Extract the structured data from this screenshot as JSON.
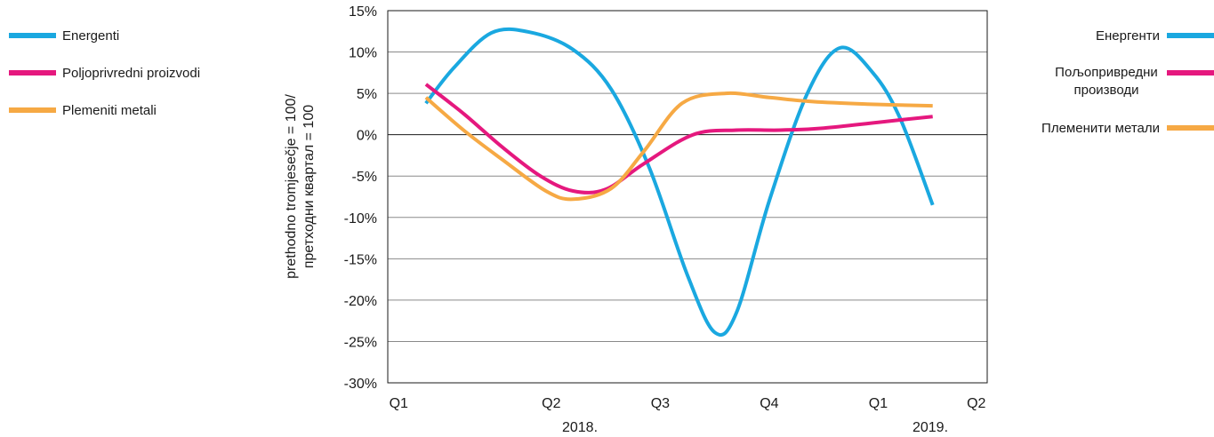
{
  "chart_data": {
    "type": "line",
    "ylabel": "prethodno tromjesečje = 100/",
    "ylabel_cyrillic": "претходни квартал  = 100",
    "ylim": [
      -30,
      15
    ],
    "y_ticks": [
      "15%",
      "10%",
      "5%",
      "0%",
      "-5%",
      "-10%",
      "-15%",
      "-20%",
      "-25%",
      "-30%"
    ],
    "y_tick_values": [
      15,
      10,
      5,
      0,
      -5,
      -10,
      -15,
      -20,
      -25,
      -30
    ],
    "x_ticks": [
      "Q1",
      "Q2",
      "Q3",
      "Q4",
      "Q1",
      "Q2"
    ],
    "year_labels": [
      "2018.",
      "2019."
    ],
    "x": [
      0.5,
      1.5,
      2.5,
      3.5,
      4.5,
      5.5
    ],
    "series": [
      {
        "name": "Energenti",
        "name_cyrillic": "Енергенти",
        "color": "#1aa8e0",
        "points": [
          [
            0.35,
            3.8
          ],
          [
            0.6,
            8
          ],
          [
            0.95,
            12.3
          ],
          [
            1.3,
            12.4
          ],
          [
            1.7,
            10.3
          ],
          [
            2.05,
            5.5
          ],
          [
            2.4,
            -4
          ],
          [
            2.75,
            -17
          ],
          [
            3.0,
            -23.9
          ],
          [
            3.2,
            -21.5
          ],
          [
            3.5,
            -8
          ],
          [
            3.85,
            5
          ],
          [
            4.15,
            10.5
          ],
          [
            4.45,
            7.5
          ],
          [
            4.7,
            2
          ],
          [
            5.0,
            -8.5
          ]
        ]
      },
      {
        "name": "Poljoprivredni proizvodi",
        "name_cyrillic": "Пољопривредни производи",
        "color": "#e5187e",
        "points": [
          [
            0.35,
            6.1
          ],
          [
            0.7,
            2.5
          ],
          [
            1.05,
            -1.5
          ],
          [
            1.4,
            -5
          ],
          [
            1.7,
            -6.8
          ],
          [
            2.0,
            -6.6
          ],
          [
            2.35,
            -3.5
          ],
          [
            2.8,
            0
          ],
          [
            3.2,
            0.55
          ],
          [
            3.6,
            0.55
          ],
          [
            4.0,
            0.8
          ],
          [
            4.5,
            1.5
          ],
          [
            5.0,
            2.2
          ]
        ]
      },
      {
        "name": "Plemeniti metali",
        "name_cyrillic": "Племенити метали",
        "color": "#f6a944",
        "points": [
          [
            0.35,
            4.5
          ],
          [
            0.7,
            0.5
          ],
          [
            1.05,
            -3
          ],
          [
            1.45,
            -6.8
          ],
          [
            1.7,
            -7.8
          ],
          [
            2.05,
            -6.5
          ],
          [
            2.35,
            -2
          ],
          [
            2.7,
            3.8
          ],
          [
            3.1,
            5
          ],
          [
            3.5,
            4.5
          ],
          [
            3.9,
            4.0
          ],
          [
            4.4,
            3.7
          ],
          [
            5.0,
            3.5
          ]
        ]
      }
    ],
    "grid": true,
    "legend": [
      "left",
      "right"
    ]
  }
}
